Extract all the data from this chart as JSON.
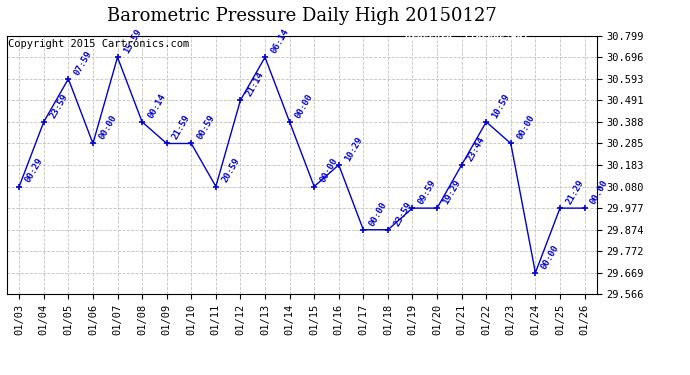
{
  "title": "Barometric Pressure Daily High 20150127",
  "copyright": "Copyright 2015 Cartronics.com",
  "dates": [
    "01/03",
    "01/04",
    "01/05",
    "01/06",
    "01/07",
    "01/08",
    "01/09",
    "01/10",
    "01/11",
    "01/12",
    "01/13",
    "01/14",
    "01/15",
    "01/16",
    "01/17",
    "01/18",
    "01/19",
    "01/20",
    "01/21",
    "01/22",
    "01/23",
    "01/24",
    "01/25",
    "01/26"
  ],
  "x_indices": [
    0,
    1,
    2,
    3,
    4,
    5,
    6,
    7,
    8,
    9,
    10,
    11,
    12,
    13,
    14,
    15,
    16,
    17,
    18,
    19,
    20,
    21,
    22,
    23
  ],
  "pressures": [
    30.08,
    30.388,
    30.593,
    30.285,
    30.696,
    30.388,
    30.285,
    30.285,
    30.08,
    30.491,
    30.696,
    30.388,
    30.08,
    30.183,
    29.874,
    29.874,
    29.977,
    29.977,
    30.183,
    30.388,
    30.285,
    29.669,
    29.977,
    29.977
  ],
  "annotations": [
    "00:29",
    "23:59",
    "07:59",
    "00:00",
    "15:59",
    "00:14",
    "21:59",
    "00:59",
    "20:59",
    "21:14",
    "06:14",
    "00:00",
    "00:00",
    "10:29",
    "00:00",
    "23:59",
    "09:59",
    "19:29",
    "23:44",
    "10:59",
    "00:00",
    "00:00",
    "21:29",
    "00:00"
  ],
  "line_color": "#0000CC",
  "marker_color": "#0000CC",
  "background_color": "#ffffff",
  "grid_color": "#bbbbbb",
  "ylim_min": 29.566,
  "ylim_max": 30.799,
  "yticks": [
    30.799,
    30.696,
    30.593,
    30.491,
    30.388,
    30.285,
    30.183,
    30.08,
    29.977,
    29.874,
    29.772,
    29.669,
    29.566
  ],
  "title_fontsize": 13,
  "annotation_fontsize": 6.5,
  "copyright_fontsize": 7.5,
  "tick_fontsize": 7.5
}
